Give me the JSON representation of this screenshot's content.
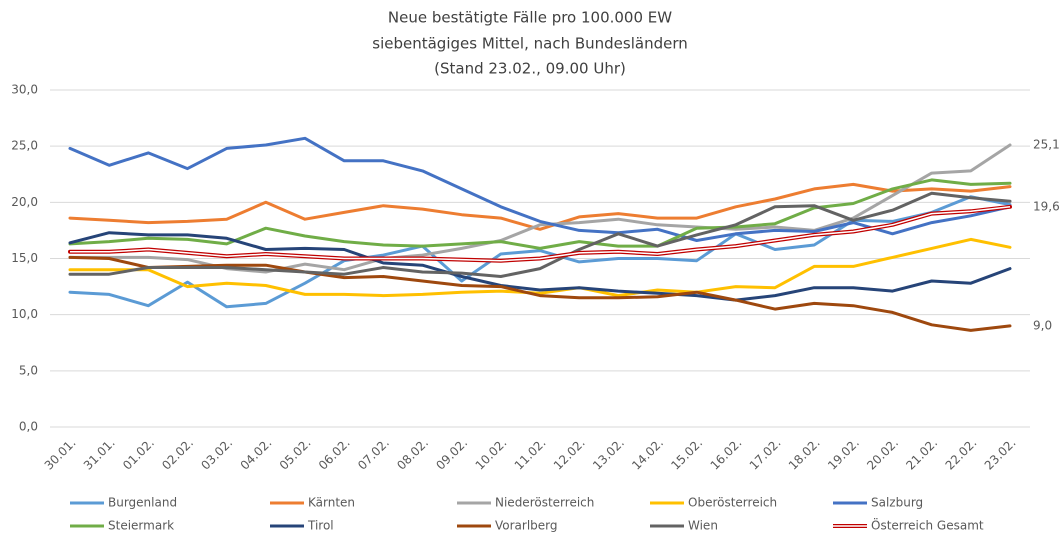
{
  "chart_data": {
    "type": "line",
    "title": "Neue bestätigte Fälle pro 100.000 EW",
    "subtitle": "siebentägiges Mittel, nach Bundesländern",
    "note": "(Stand 23.02., 09.00 Uhr)",
    "categories": [
      "30.01.",
      "31.01.",
      "01.02.",
      "02.02.",
      "03.02.",
      "04.02.",
      "05.02.",
      "06.02.",
      "07.02.",
      "08.02.",
      "09.02.",
      "10.02.",
      "11.02.",
      "12.02.",
      "13.02.",
      "14.02.",
      "15.02.",
      "16.02.",
      "17.02.",
      "18.02.",
      "19.02.",
      "20.02.",
      "21.02.",
      "22.02.",
      "23.02."
    ],
    "ylim": [
      0,
      30
    ],
    "yticks": [
      {
        "value": 0,
        "label": "0,0"
      },
      {
        "value": 5,
        "label": "5,0"
      },
      {
        "value": 10,
        "label": "10,0"
      },
      {
        "value": 15,
        "label": "15,0"
      },
      {
        "value": 20,
        "label": "20,0"
      },
      {
        "value": 25,
        "label": "25,0"
      },
      {
        "value": 30,
        "label": "30,0"
      }
    ],
    "grid": true,
    "legend": "bottom",
    "series": [
      {
        "name": "Burgenland",
        "color": "#5b9bd5",
        "values": [
          12.0,
          11.8,
          10.8,
          12.9,
          10.7,
          11.0,
          12.8,
          14.8,
          15.3,
          16.1,
          13.0,
          15.4,
          15.7,
          14.7,
          15.0,
          15.0,
          14.8,
          17.2,
          15.8,
          16.2,
          18.4,
          18.3,
          19.1,
          20.5,
          19.8
        ]
      },
      {
        "name": "Kärnten",
        "color": "#ed7d31",
        "values": [
          18.6,
          18.4,
          18.2,
          18.3,
          18.5,
          20.0,
          18.5,
          19.1,
          19.7,
          19.4,
          18.9,
          18.6,
          17.6,
          18.7,
          19.0,
          18.6,
          18.6,
          19.6,
          20.3,
          21.2,
          21.6,
          21.0,
          21.2,
          21.0,
          21.4
        ]
      },
      {
        "name": "Niederösterreich",
        "color": "#a5a5a5",
        "values": [
          15.1,
          15.1,
          15.1,
          14.9,
          14.1,
          13.8,
          14.5,
          14.0,
          15.0,
          15.3,
          15.9,
          16.6,
          18.0,
          18.2,
          18.5,
          18.0,
          17.8,
          17.6,
          17.8,
          17.5,
          18.6,
          20.6,
          22.6,
          22.8,
          25.1
        ],
        "value_labels": [
          null,
          null,
          null,
          null,
          null,
          null,
          null,
          null,
          null,
          null,
          null,
          null,
          null,
          null,
          null,
          null,
          null,
          null,
          null,
          null,
          null,
          null,
          null,
          null,
          "25,1"
        ]
      },
      {
        "name": "Oberösterreich",
        "color": "#ffc000",
        "values": [
          14.0,
          14.0,
          14.0,
          12.5,
          12.8,
          12.6,
          11.8,
          11.8,
          11.7,
          11.8,
          12.0,
          12.1,
          11.9,
          12.4,
          11.7,
          12.2,
          12.0,
          12.5,
          12.4,
          14.3,
          14.3,
          15.1,
          15.9,
          16.7,
          16.0
        ]
      },
      {
        "name": "Salzburg",
        "color": "#4472c4",
        "values": [
          24.8,
          23.3,
          24.4,
          23.0,
          24.8,
          25.1,
          25.7,
          23.7,
          23.7,
          22.8,
          21.2,
          19.6,
          18.3,
          17.5,
          17.3,
          17.6,
          16.6,
          17.2,
          17.5,
          17.4,
          18.2,
          17.2,
          18.2,
          18.8,
          19.6
        ]
      },
      {
        "name": "Steiermark",
        "color": "#70ad47",
        "values": [
          16.3,
          16.5,
          16.8,
          16.7,
          16.3,
          17.7,
          17.0,
          16.5,
          16.2,
          16.1,
          16.3,
          16.5,
          15.9,
          16.5,
          16.1,
          16.1,
          17.7,
          17.8,
          18.1,
          19.5,
          19.9,
          21.2,
          22.0,
          21.6,
          21.7
        ]
      },
      {
        "name": "Tirol",
        "color": "#264478",
        "values": [
          16.4,
          17.3,
          17.1,
          17.1,
          16.8,
          15.8,
          15.9,
          15.8,
          14.6,
          14.4,
          13.4,
          12.6,
          12.2,
          12.4,
          12.1,
          11.9,
          11.7,
          11.3,
          11.7,
          12.4,
          12.4,
          12.1,
          13.0,
          12.8,
          14.1
        ]
      },
      {
        "name": "Vorarlberg",
        "color": "#9e480e",
        "values": [
          15.1,
          15.0,
          14.2,
          14.3,
          14.4,
          14.4,
          13.8,
          13.3,
          13.4,
          13.0,
          12.6,
          12.5,
          11.7,
          11.5,
          11.5,
          11.6,
          12.0,
          11.3,
          10.5,
          11.0,
          10.8,
          10.2,
          9.1,
          8.6,
          9.0
        ],
        "value_labels": [
          null,
          null,
          null,
          null,
          null,
          null,
          null,
          null,
          null,
          null,
          null,
          null,
          null,
          null,
          null,
          null,
          null,
          null,
          null,
          null,
          null,
          null,
          null,
          null,
          "9,0"
        ]
      },
      {
        "name": "Wien",
        "color": "#636363",
        "values": [
          13.6,
          13.6,
          14.2,
          14.2,
          14.2,
          14.0,
          13.8,
          13.6,
          14.2,
          13.8,
          13.7,
          13.4,
          14.1,
          15.8,
          17.2,
          16.1,
          17.1,
          18.0,
          19.6,
          19.7,
          18.4,
          19.3,
          20.8,
          20.4,
          20.1
        ]
      },
      {
        "name": "Österreich Gesamt",
        "color": "#c00000",
        "double": true,
        "values": [
          15.6,
          15.6,
          15.8,
          15.5,
          15.2,
          15.4,
          15.2,
          15.0,
          15.0,
          15.0,
          14.9,
          14.8,
          15.0,
          15.5,
          15.6,
          15.4,
          15.8,
          16.1,
          16.6,
          17.1,
          17.4,
          18.0,
          19.0,
          19.2,
          19.6
        ],
        "value_labels": [
          null,
          null,
          null,
          null,
          null,
          null,
          null,
          null,
          null,
          null,
          null,
          null,
          null,
          null,
          null,
          null,
          null,
          null,
          null,
          null,
          null,
          null,
          null,
          null,
          "19,6"
        ]
      }
    ]
  }
}
